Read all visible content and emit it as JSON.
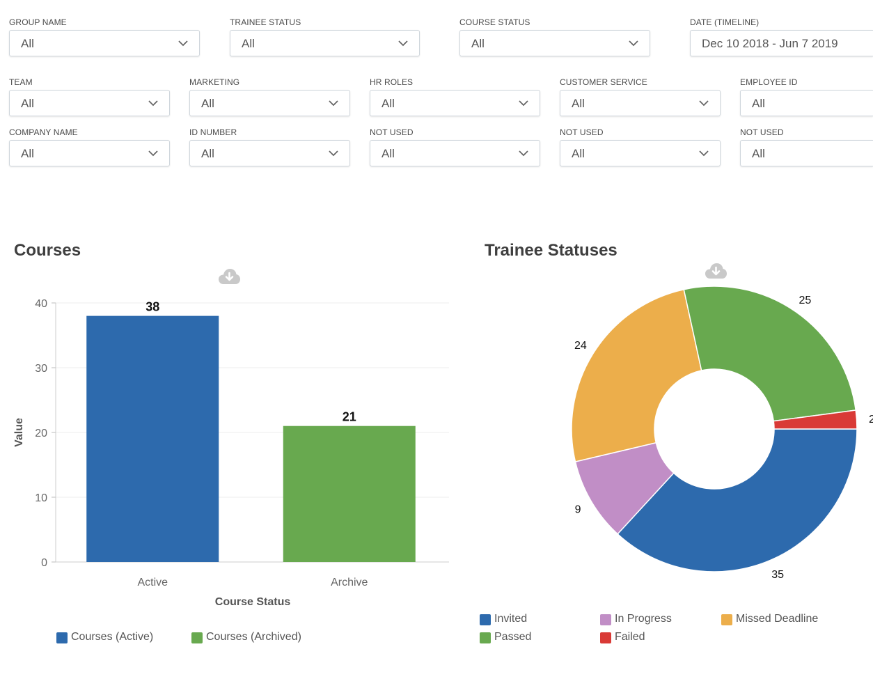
{
  "filters": {
    "group_name": {
      "label": "GROUP NAME",
      "value": "All"
    },
    "trainee_status": {
      "label": "TRAINEE STATUS",
      "value": "All"
    },
    "course_status": {
      "label": "COURSE STATUS",
      "value": "All"
    },
    "date_timeline": {
      "label": "DATE (TIMELINE)",
      "value": "Dec 10 2018 - Jun 7 2019"
    },
    "team": {
      "label": "TEAM",
      "value": "All"
    },
    "marketing": {
      "label": "MARKETING",
      "value": "All"
    },
    "hr_roles": {
      "label": "HR ROLES",
      "value": "All"
    },
    "customer_service": {
      "label": "CUSTOMER SERVICE",
      "value": "All"
    },
    "employee_id": {
      "label": "EMPLOYEE ID",
      "value": "All"
    },
    "company_name": {
      "label": "COMPANY NAME",
      "value": "All"
    },
    "id_number": {
      "label": "ID NUMBER",
      "value": "All"
    },
    "not_used_1": {
      "label": "NOT USED",
      "value": "All"
    },
    "not_used_2": {
      "label": "NOT USED",
      "value": "All"
    },
    "not_used_3": {
      "label": "NOT USED",
      "value": "All"
    }
  },
  "icons": {
    "download": "cloud-download-icon",
    "dropdown": "chevron-down-icon"
  },
  "chart_data": [
    {
      "type": "bar",
      "title": "Courses",
      "xlabel": "Course Status",
      "ylabel": "Value",
      "categories": [
        "Active",
        "Archive"
      ],
      "values": [
        38,
        21
      ],
      "colors": [
        "#2d6aad",
        "#68a94f"
      ],
      "ylim": [
        0,
        40
      ],
      "yticks": [
        0,
        10,
        20,
        30,
        40
      ],
      "grid": true,
      "legend_position": "bottom-left",
      "legend": [
        {
          "name": "Courses (Active)",
          "color": "#2d6aad"
        },
        {
          "name": "Courses (Archived)",
          "color": "#68a94f"
        }
      ]
    },
    {
      "type": "pie",
      "title": "Trainee Statuses",
      "donut": true,
      "legend_position": "bottom-left",
      "slices": [
        {
          "name": "Invited",
          "value": 35,
          "color": "#2d6aad"
        },
        {
          "name": "In Progress",
          "value": 9,
          "color": "#c18ec6"
        },
        {
          "name": "Missed Deadline",
          "value": 24,
          "color": "#ecae4b"
        },
        {
          "name": "Passed",
          "value": 25,
          "color": "#68a94f"
        },
        {
          "name": "Failed",
          "value": 2,
          "color": "#d93a36"
        }
      ]
    }
  ]
}
